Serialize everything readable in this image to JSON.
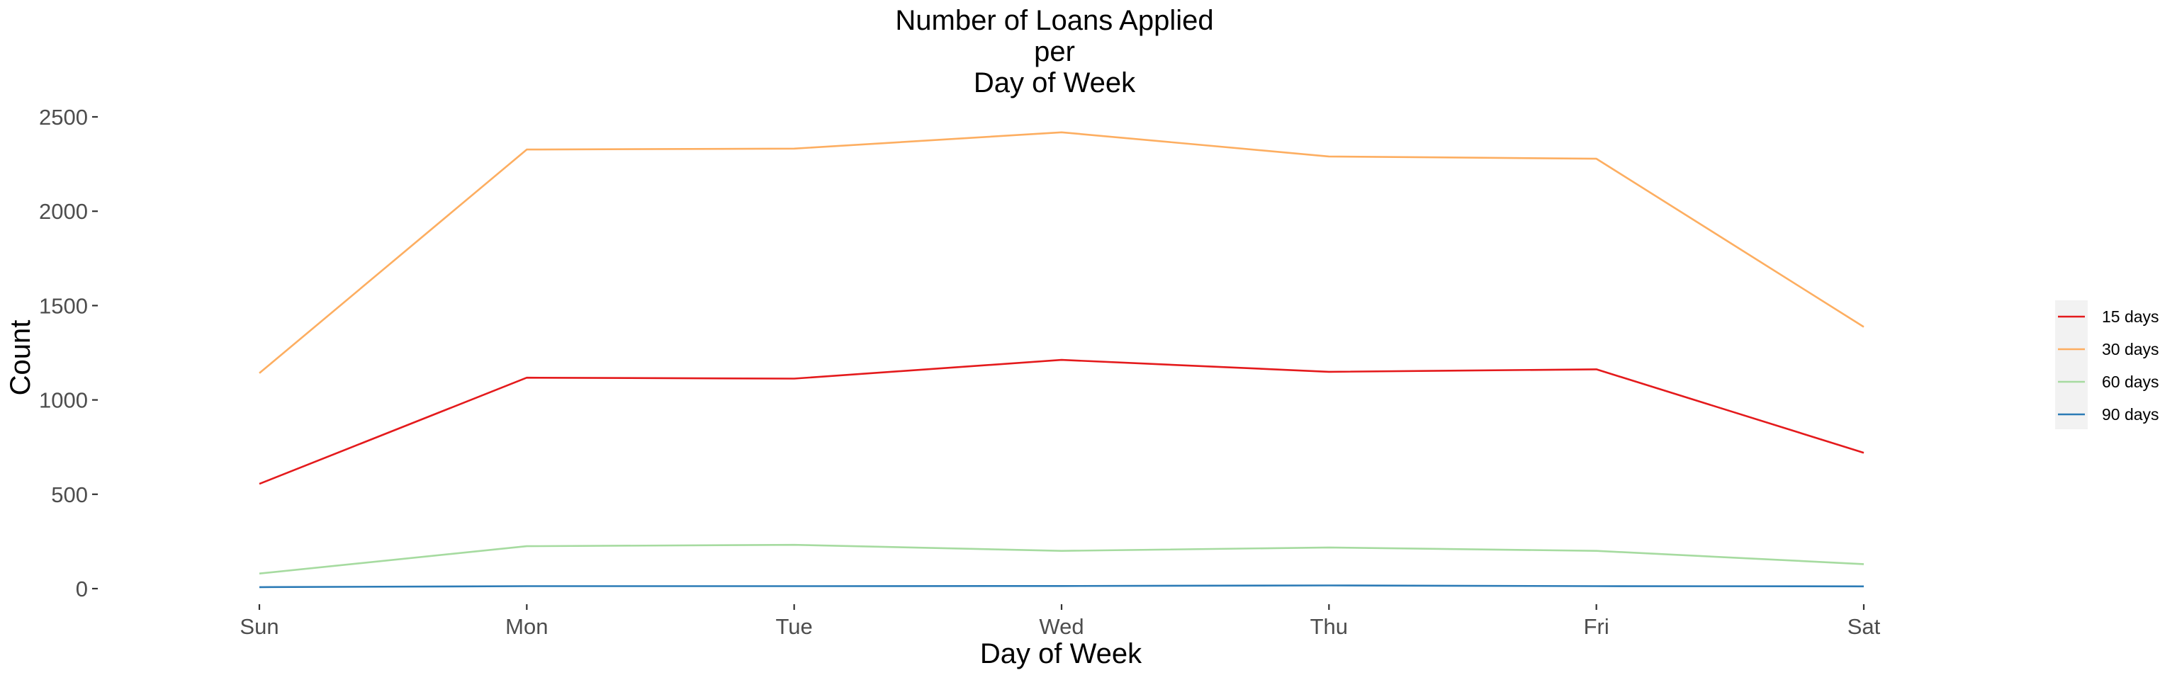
{
  "chart_data": {
    "type": "line",
    "title": [
      "Number of Loans Applied",
      "per",
      "Day of Week"
    ],
    "xlabel": "Day of Week",
    "ylabel": "Count",
    "categories": [
      "Sun",
      "Mon",
      "Tue",
      "Wed",
      "Thu",
      "Fri",
      "Sat"
    ],
    "ylim": [
      0,
      2500
    ],
    "yticks": [
      0,
      500,
      1000,
      1500,
      2000,
      2500
    ],
    "grid": false,
    "legend_position": "right",
    "series": [
      {
        "name": "15 days",
        "color": "#e41a1c",
        "values": [
          555,
          1118,
          1113,
          1212,
          1149,
          1162,
          720
        ]
      },
      {
        "name": "30 days",
        "color": "#fdae61",
        "values": [
          1142,
          2327,
          2332,
          2418,
          2290,
          2278,
          1387
        ]
      },
      {
        "name": "60 days",
        "color": "#a6dba0",
        "values": [
          80,
          225,
          232,
          200,
          218,
          200,
          130
        ]
      },
      {
        "name": "90 days",
        "color": "#2c7bb6",
        "values": [
          8,
          13,
          13,
          14,
          17,
          13,
          12
        ]
      }
    ]
  }
}
